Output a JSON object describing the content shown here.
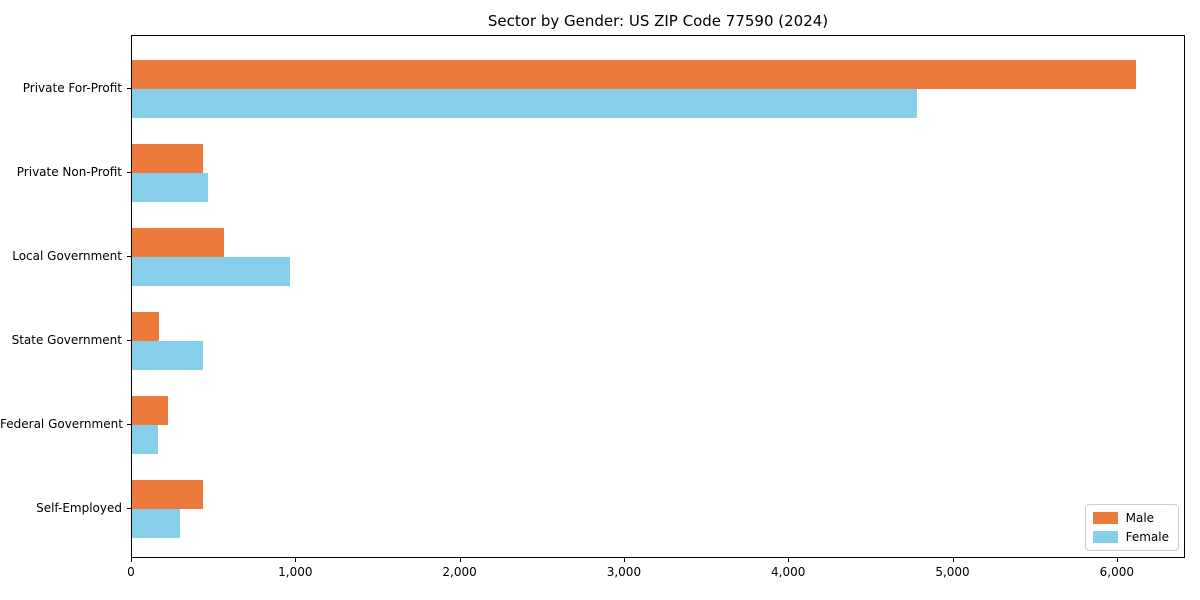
{
  "title": "Sector by Gender: US ZIP Code 77590 (2024)",
  "colors": {
    "male": "#ec7a3d",
    "female": "#87ceeb",
    "spine": "#000000",
    "legend_border": "#cccccc",
    "background": "#ffffff"
  },
  "legend": {
    "items": [
      {
        "label": "Male",
        "color": "#ec7a3d"
      },
      {
        "label": "Female",
        "color": "#87ceeb"
      }
    ]
  },
  "chart_data": {
    "type": "bar",
    "orientation": "horizontal",
    "title": "Sector by Gender: US ZIP Code 77590 (2024)",
    "xlabel": "",
    "ylabel": "",
    "categories": [
      "Private For-Profit",
      "Private Non-Profit",
      "Local Government",
      "State Government",
      "Federal Government",
      "Self-Employed"
    ],
    "series": [
      {
        "name": "Male",
        "color": "#ec7a3d",
        "values": [
          6110,
          430,
          560,
          165,
          220,
          430
        ]
      },
      {
        "name": "Female",
        "color": "#87ceeb",
        "values": [
          4780,
          460,
          960,
          430,
          160,
          295
        ]
      }
    ],
    "xlim": [
      0,
      6415
    ],
    "x_ticks": [
      0,
      1000,
      2000,
      3000,
      4000,
      5000,
      6000
    ],
    "x_tick_labels": [
      "0",
      "1,000",
      "2,000",
      "3,000",
      "4,000",
      "5,000",
      "6,000"
    ],
    "legend_position": "lower right",
    "grid": false
  }
}
